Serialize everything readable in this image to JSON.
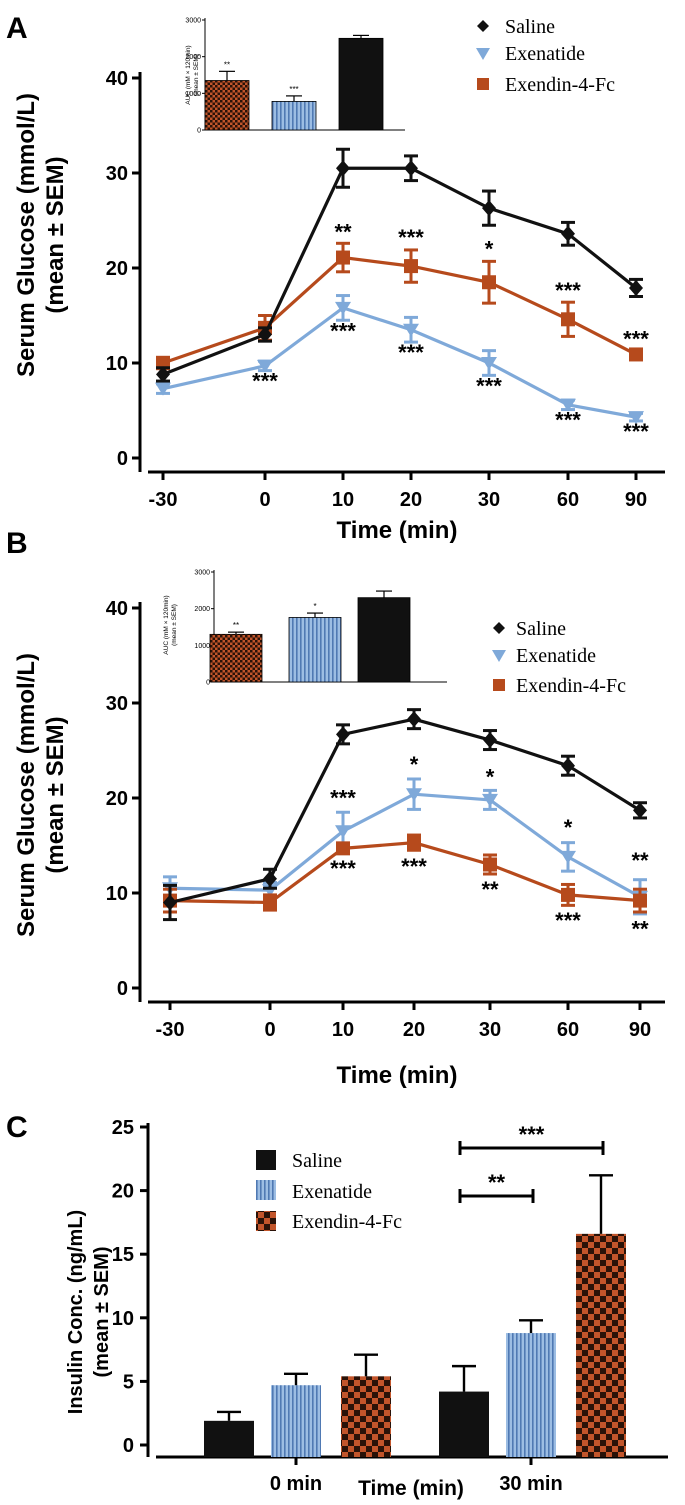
{
  "colors": {
    "saline": "#111111",
    "exenatide": "#7fa9d9",
    "exendin": "#b64a1c",
    "axis": "#000000"
  },
  "chart_data": [
    {
      "panel": "A",
      "type": "line",
      "x": [
        "-30",
        "0",
        "10",
        "20",
        "30",
        "60",
        "90"
      ],
      "xlabel": "Time (min)",
      "ylabel_line1": "Serum Glucose (mmol/L)",
      "ylabel_line2": "(mean ± SEM)",
      "ylim": [
        0,
        40
      ],
      "yticks": [
        "0",
        "10",
        "20",
        "30",
        "40"
      ],
      "legend_position": "top-right",
      "series": [
        {
          "name": "Saline",
          "key": "saline",
          "marker": "diamond",
          "values": [
            8.8,
            13.0,
            30.5,
            30.5,
            26.3,
            23.6,
            17.9
          ],
          "errors": [
            0.7,
            0.7,
            2.0,
            1.3,
            1.8,
            1.2,
            0.9
          ]
        },
        {
          "name": "Exenatide",
          "key": "exenatide",
          "marker": "triangle-down",
          "values": [
            7.3,
            9.7,
            15.8,
            13.5,
            10.0,
            5.6,
            4.3
          ],
          "errors": [
            0.5,
            0.5,
            1.3,
            1.3,
            1.3,
            0.5,
            0.4
          ]
        },
        {
          "name": "Exendin-4-Fc",
          "key": "exendin",
          "marker": "square",
          "values": [
            10.0,
            13.7,
            21.1,
            20.2,
            18.5,
            14.6,
            10.9
          ],
          "errors": [
            0.6,
            1.3,
            1.5,
            1.7,
            2.2,
            1.8,
            0.4
          ]
        }
      ],
      "annotations_above": [
        {
          "x": "10",
          "y": 22.6,
          "text": "**"
        },
        {
          "x": "20",
          "y": 22.0,
          "text": "***"
        },
        {
          "x": "30",
          "y": 20.8,
          "text": "*"
        },
        {
          "x": "60",
          "y": 16.4,
          "text": "***"
        },
        {
          "x": "90",
          "y": 11.3,
          "text": "***"
        }
      ],
      "annotations_below": [
        {
          "x": "0",
          "y": 9.2,
          "text": "***"
        },
        {
          "x": "10",
          "y": 14.5,
          "text": "***"
        },
        {
          "x": "20",
          "y": 12.2,
          "text": "***"
        },
        {
          "x": "30",
          "y": 8.7,
          "text": "***"
        },
        {
          "x": "60",
          "y": 5.1,
          "text": "***"
        },
        {
          "x": "90",
          "y": 3.9,
          "text": "***"
        }
      ],
      "inset": {
        "type": "bar",
        "ylabel_line1": "AUC (mM × 120min)",
        "ylabel_line2": "(mean ± SEM)",
        "ylim": [
          0,
          3000
        ],
        "yticks": [
          "0",
          "1000",
          "2000",
          "3000"
        ],
        "bars": [
          {
            "key": "exendin",
            "value": 1350,
            "error": 250,
            "star": "**"
          },
          {
            "key": "exenatide",
            "value": 780,
            "error": 150,
            "star": "***"
          },
          {
            "key": "saline",
            "value": 2500,
            "error": 80,
            "star": ""
          }
        ]
      }
    },
    {
      "panel": "B",
      "type": "line",
      "x": [
        "-30",
        "0",
        "10",
        "20",
        "30",
        "60",
        "90"
      ],
      "xlabel": "Time (min)",
      "ylabel_line1": "Serum Glucose (mmol/L)",
      "ylabel_line2": "(mean ± SEM)",
      "ylim": [
        0,
        40
      ],
      "yticks": [
        "0",
        "10",
        "20",
        "30",
        "40"
      ],
      "legend_position": "top-right",
      "series": [
        {
          "name": "Saline",
          "key": "saline",
          "marker": "diamond",
          "values": [
            9.0,
            11.5,
            26.7,
            28.3,
            26.1,
            23.4,
            18.7
          ],
          "errors": [
            1.8,
            1.0,
            1.0,
            1.0,
            1.0,
            1.0,
            0.8
          ]
        },
        {
          "name": "Exenatide",
          "key": "exenatide",
          "marker": "triangle-down",
          "values": [
            10.5,
            10.3,
            16.5,
            20.4,
            19.8,
            13.8,
            9.6
          ],
          "errors": [
            1.2,
            0.8,
            2.0,
            1.6,
            1.0,
            1.5,
            1.8
          ]
        },
        {
          "name": "Exendin-4-Fc",
          "key": "exendin",
          "marker": "square",
          "values": [
            9.2,
            9.0,
            14.7,
            15.3,
            13.0,
            9.8,
            9.2
          ],
          "errors": [
            1.2,
            0.8,
            0.5,
            0.8,
            1.0,
            1.1,
            1.2
          ]
        }
      ],
      "annotations_above": [
        {
          "x": "10",
          "y": 18.8,
          "text": "***"
        },
        {
          "x": "20",
          "y": 22.3,
          "text": "*"
        },
        {
          "x": "30",
          "y": 21.0,
          "text": "*"
        },
        {
          "x": "60",
          "y": 15.7,
          "text": "*"
        },
        {
          "x": "90",
          "y": 12.2,
          "text": "**"
        }
      ],
      "annotations_below": [
        {
          "x": "10",
          "y": 13.7,
          "text": "***"
        },
        {
          "x": "20",
          "y": 13.9,
          "text": "***"
        },
        {
          "x": "30",
          "y": 11.5,
          "text": "**"
        },
        {
          "x": "60",
          "y": 8.2,
          "text": "***"
        },
        {
          "x": "90",
          "y": 7.3,
          "text": "**"
        }
      ],
      "inset": {
        "type": "bar",
        "ylabel_line1": "AUC (mM × 120min)",
        "ylabel_line2": "(mean ± SEM)",
        "ylim": [
          0,
          3000
        ],
        "yticks": [
          "0",
          "1000",
          "2000",
          "3000"
        ],
        "bars": [
          {
            "key": "exendin",
            "value": 1300,
            "error": 60,
            "star": "**"
          },
          {
            "key": "exenatide",
            "value": 1760,
            "error": 120,
            "star": "*"
          },
          {
            "key": "saline",
            "value": 2300,
            "error": 180,
            "star": ""
          }
        ]
      }
    },
    {
      "panel": "C",
      "type": "bar",
      "categories": [
        "0 min",
        "30 min"
      ],
      "xlabel": "Time (min)",
      "ylabel_line1": "Insulin Conc. (ng/mL)",
      "ylabel_line2": "(mean ± SEM)",
      "ylim": [
        0,
        25
      ],
      "yticks": [
        "0",
        "5",
        "10",
        "15",
        "20",
        "25"
      ],
      "legend_position": "top-center",
      "series": [
        {
          "name": "Saline",
          "key": "saline",
          "values": [
            1.9,
            4.2
          ],
          "errors": [
            0.7,
            2.0
          ]
        },
        {
          "name": "Exenatide",
          "key": "exenatide",
          "values": [
            4.7,
            8.8
          ],
          "errors": [
            0.9,
            1.0
          ]
        },
        {
          "name": "Exendin-4-Fc",
          "key": "exendin",
          "values": [
            5.4,
            16.6
          ],
          "errors": [
            1.7,
            4.6
          ]
        }
      ],
      "significance": [
        {
          "from": "Saline",
          "to": "Exendin-4-Fc",
          "category": "30 min",
          "text": "***"
        },
        {
          "from": "Saline",
          "to": "Exenatide",
          "category": "30 min",
          "text": "**"
        }
      ]
    }
  ]
}
